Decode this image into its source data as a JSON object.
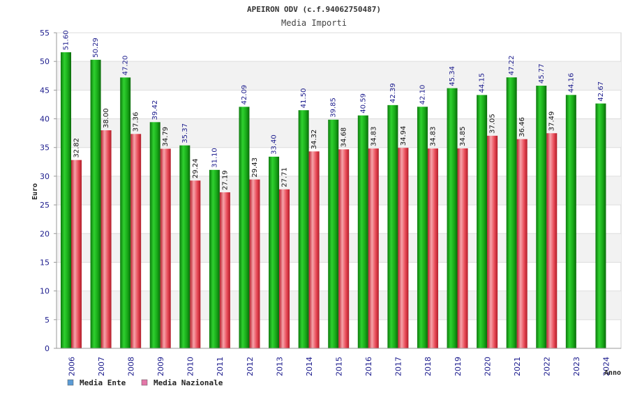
{
  "chart_data": {
    "type": "bar",
    "title": "APEIRON ODV (c.f.94062750487)",
    "subtitle": "Media Importi",
    "xlabel": "Anno",
    "ylabel": "Euro",
    "ylim": [
      0,
      55
    ],
    "yticks": [
      0,
      5,
      10,
      15,
      20,
      25,
      30,
      35,
      40,
      45,
      50,
      55
    ],
    "grid": true,
    "legend_position": "bottom-left",
    "categories": [
      "2006",
      "2007",
      "2008",
      "2009",
      "2010",
      "2011",
      "2012",
      "2013",
      "2014",
      "2015",
      "2016",
      "2017",
      "2018",
      "2019",
      "2020",
      "2021",
      "2022",
      "2023",
      "2024"
    ],
    "series": [
      {
        "name": "Media Ente",
        "color": "#22b422",
        "legend_color": "#5b9bd5",
        "values": [
          51.6,
          50.29,
          47.2,
          39.42,
          35.37,
          31.1,
          42.09,
          33.4,
          41.5,
          39.85,
          40.59,
          42.39,
          42.1,
          45.34,
          44.15,
          47.22,
          45.77,
          44.16,
          42.67
        ],
        "labels": [
          "51.60",
          "50.29",
          "47.20",
          "39.42",
          "35.37",
          "31.10",
          "42.09",
          "33.40",
          "41.50",
          "39.85",
          "40.59",
          "42.39",
          "42.10",
          "45.34",
          "44.15",
          "47.22",
          "45.77",
          "44.16",
          "42.67"
        ]
      },
      {
        "name": "Media Nazionale",
        "color": "#e8434f",
        "legend_color": "#e377a8",
        "values": [
          32.82,
          38.0,
          37.36,
          34.79,
          29.24,
          27.19,
          29.43,
          27.71,
          34.32,
          34.68,
          34.83,
          34.94,
          34.83,
          34.85,
          37.05,
          36.46,
          37.49,
          null,
          null
        ],
        "labels": [
          "32.82",
          "38.00",
          "37.36",
          "34.79",
          "29.24",
          "27.19",
          "29.43",
          "27.71",
          "34.32",
          "34.68",
          "34.83",
          "34.94",
          "34.83",
          "34.85",
          "37.05",
          "36.46",
          "37.49",
          "",
          ""
        ]
      }
    ]
  }
}
